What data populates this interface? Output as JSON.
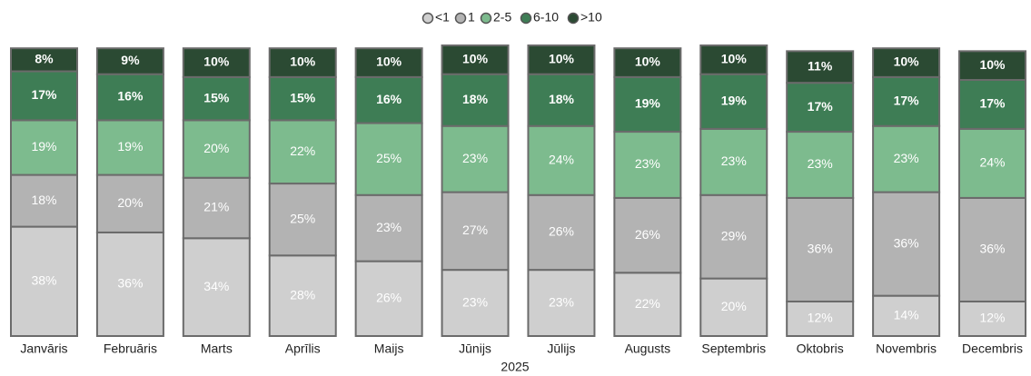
{
  "chart_data": {
    "type": "stacked_bar",
    "x_label": "2025",
    "categories": [
      "Janvāris",
      "Februāris",
      "Marts",
      "Aprīlis",
      "Maijs",
      "Jūnijs",
      "Jūlijs",
      "Augusts",
      "Septembris",
      "Oktobris",
      "Novembris",
      "Decembris"
    ],
    "series": [
      {
        "name": "<1",
        "color": "#cfcfcf",
        "values": [
          38,
          36,
          34,
          28,
          26,
          23,
          23,
          22,
          20,
          12,
          14,
          12
        ],
        "value_labels": [
          "38%",
          "36%",
          "34%",
          "28%",
          "26%",
          "23%",
          "23%",
          "22%",
          "20%",
          "12%",
          "14%",
          "12%"
        ]
      },
      {
        "name": "1",
        "color": "#b3b3b3",
        "values": [
          18,
          20,
          21,
          25,
          23,
          27,
          26,
          26,
          29,
          36,
          36,
          36
        ],
        "value_labels": [
          "18%",
          "20%",
          "21%",
          "25%",
          "23%",
          "27%",
          "26%",
          "26%",
          "29%",
          "36%",
          "36%",
          "36%"
        ]
      },
      {
        "name": "2-5",
        "color": "#7dbb8e",
        "values": [
          19,
          19,
          20,
          22,
          25,
          23,
          24,
          23,
          23,
          23,
          23,
          24
        ],
        "value_labels": [
          "19%",
          "19%",
          "20%",
          "22%",
          "25%",
          "23%",
          "24%",
          "23%",
          "23%",
          "23%",
          "23%",
          "24%"
        ]
      },
      {
        "name": "6-10",
        "color": "#3e7d55",
        "values": [
          17,
          16,
          15,
          15,
          16,
          18,
          18,
          19,
          19,
          17,
          17,
          17
        ],
        "value_labels": [
          "17%",
          "16%",
          "15%",
          "15%",
          "16%",
          "18%",
          "18%",
          "19%",
          "19%",
          "17%",
          "17%",
          "17%"
        ]
      },
      {
        "name": ">10",
        "color": "#2b4a33",
        "values": [
          8,
          9,
          10,
          10,
          10,
          10,
          10,
          10,
          10,
          11,
          10,
          10
        ],
        "value_labels": [
          "8%",
          "9%",
          "10%",
          "10%",
          "10%",
          "10%",
          "10%",
          "10%",
          "10%",
          "11%",
          "10%",
          "10%"
        ]
      }
    ],
    "legend": "top"
  }
}
